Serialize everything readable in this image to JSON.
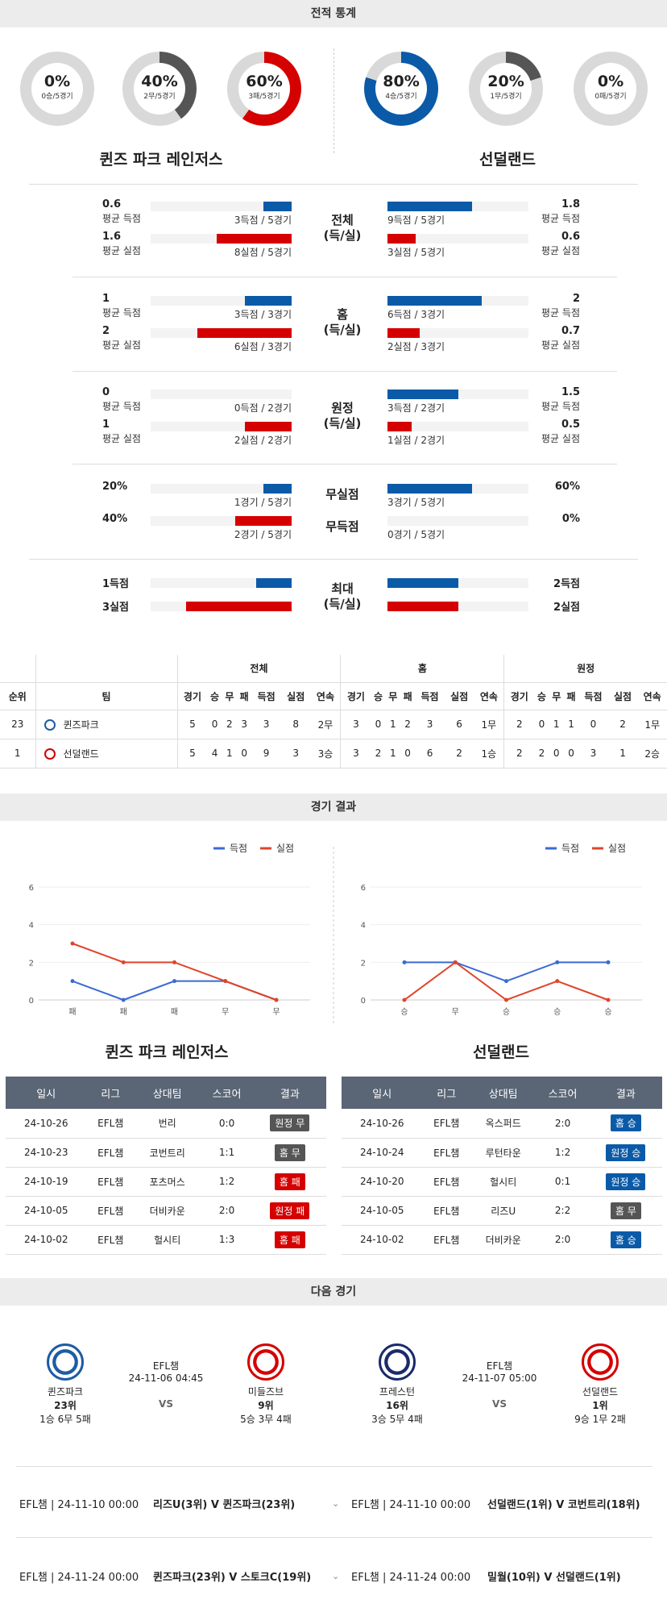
{
  "header": {
    "title": "전적 통계"
  },
  "donuts_left": [
    {
      "pct": "0%",
      "sub": "0승/5경기",
      "value": 0,
      "color": "#d50000"
    },
    {
      "pct": "40%",
      "sub": "2무/5경기",
      "value": 0.4,
      "color": "#555555"
    },
    {
      "pct": "60%",
      "sub": "3패/5경기",
      "value": 0.6,
      "color": "#d50000"
    }
  ],
  "donuts_right": [
    {
      "pct": "80%",
      "sub": "4승/5경기",
      "value": 0.8,
      "color": "#0b5aa8"
    },
    {
      "pct": "20%",
      "sub": "1무/5경기",
      "value": 0.2,
      "color": "#555555"
    },
    {
      "pct": "0%",
      "sub": "0패/5경기",
      "value": 0,
      "color": "#d50000"
    }
  ],
  "team_left": "퀸즈 파크 레인저스",
  "team_right": "선덜랜드",
  "stats": [
    {
      "center": [
        "전체",
        "(득/실)"
      ],
      "left": [
        {
          "num": "0.6",
          "lbl": "평균 득점",
          "cap": "3득점 / 5경기",
          "frac": 0.2,
          "color": "blue"
        },
        {
          "num": "1.6",
          "lbl": "평균 실점",
          "cap": "8실점 / 5경기",
          "frac": 0.53,
          "color": "red"
        }
      ],
      "right": [
        {
          "num": "1.8",
          "lbl": "평균 득점",
          "cap": "9득점 / 5경기",
          "frac": 0.6,
          "color": "blue"
        },
        {
          "num": "0.6",
          "lbl": "평균 실점",
          "cap": "3실점 / 5경기",
          "frac": 0.2,
          "color": "red"
        }
      ]
    },
    {
      "center": [
        "홈",
        "(득/실)"
      ],
      "left": [
        {
          "num": "1",
          "lbl": "평균 득점",
          "cap": "3득점 / 3경기",
          "frac": 0.33,
          "color": "blue"
        },
        {
          "num": "2",
          "lbl": "평균 실점",
          "cap": "6실점 / 3경기",
          "frac": 0.67,
          "color": "red"
        }
      ],
      "right": [
        {
          "num": "2",
          "lbl": "평균 득점",
          "cap": "6득점 / 3경기",
          "frac": 0.67,
          "color": "blue"
        },
        {
          "num": "0.7",
          "lbl": "평균 실점",
          "cap": "2실점 / 3경기",
          "frac": 0.23,
          "color": "red"
        }
      ]
    },
    {
      "center": [
        "원정",
        "(득/실)"
      ],
      "left": [
        {
          "num": "0",
          "lbl": "평균 득점",
          "cap": "0득점 / 2경기",
          "frac": 0,
          "color": "blue"
        },
        {
          "num": "1",
          "lbl": "평균 실점",
          "cap": "2실점 / 2경기",
          "frac": 0.33,
          "color": "red"
        }
      ],
      "right": [
        {
          "num": "1.5",
          "lbl": "평균 득점",
          "cap": "3득점 / 2경기",
          "frac": 0.5,
          "color": "blue"
        },
        {
          "num": "0.5",
          "lbl": "평균 실점",
          "cap": "1실점 / 2경기",
          "frac": 0.17,
          "color": "red"
        }
      ]
    }
  ],
  "clean": {
    "center1": "무실점",
    "center2": "무득점",
    "left": [
      {
        "num": "20%",
        "cap": "1경기 / 5경기",
        "frac": 0.2,
        "color": "blue"
      },
      {
        "num": "40%",
        "cap": "2경기 / 5경기",
        "frac": 0.4,
        "color": "red"
      }
    ],
    "right": [
      {
        "num": "60%",
        "cap": "3경기 / 5경기",
        "frac": 0.6,
        "color": "blue"
      },
      {
        "num": "0%",
        "cap": "0경기 / 5경기",
        "frac": 0,
        "color": "red"
      }
    ]
  },
  "max": {
    "center": [
      "최대",
      "(득/실)"
    ],
    "left": [
      {
        "num": "1득점",
        "frac": 0.25,
        "color": "blue"
      },
      {
        "num": "3실점",
        "frac": 0.75,
        "color": "red"
      }
    ],
    "right": [
      {
        "num": "2득점",
        "frac": 0.5,
        "color": "blue"
      },
      {
        "num": "2실점",
        "frac": 0.5,
        "color": "red"
      }
    ]
  },
  "standings": {
    "groups": [
      "전체",
      "홈",
      "원정"
    ],
    "cols_left": [
      "순위",
      "팀"
    ],
    "cols": [
      "경기",
      "승",
      "무",
      "패",
      "득점",
      "실점",
      "연속"
    ],
    "rows": [
      {
        "rank": "23",
        "team": "퀸즈파크",
        "crest": "#1d5ba4",
        "all": [
          "5",
          "0",
          "2",
          "3",
          "3",
          "8",
          "2무"
        ],
        "home": [
          "3",
          "0",
          "1",
          "2",
          "3",
          "6",
          "1무"
        ],
        "away": [
          "2",
          "0",
          "1",
          "1",
          "0",
          "2",
          "1무"
        ]
      },
      {
        "rank": "1",
        "team": "선덜랜드",
        "crest": "#d50000",
        "all": [
          "5",
          "4",
          "1",
          "0",
          "9",
          "3",
          "3승"
        ],
        "home": [
          "3",
          "2",
          "1",
          "0",
          "6",
          "2",
          "1승"
        ],
        "away": [
          "2",
          "2",
          "0",
          "0",
          "3",
          "1",
          "2승"
        ]
      }
    ]
  },
  "results_header": "경기 결과",
  "chart_data": [
    {
      "type": "line",
      "categories": [
        "패",
        "패",
        "패",
        "무",
        "무"
      ],
      "ylim": [
        0,
        6
      ],
      "yticks": [
        0,
        2,
        4,
        6
      ],
      "series": [
        {
          "name": "득점",
          "color": "#3a6ad4",
          "values": [
            1,
            0,
            1,
            1,
            0
          ]
        },
        {
          "name": "실점",
          "color": "#e0442a",
          "values": [
            3,
            2,
            2,
            1,
            0
          ]
        }
      ],
      "legend": "top-right"
    },
    {
      "type": "line",
      "categories": [
        "승",
        "무",
        "승",
        "승",
        "승"
      ],
      "ylim": [
        0,
        6
      ],
      "yticks": [
        0,
        2,
        4,
        6
      ],
      "series": [
        {
          "name": "득점",
          "color": "#3a6ad4",
          "values": [
            2,
            2,
            1,
            2,
            2
          ]
        },
        {
          "name": "실점",
          "color": "#e0442a",
          "values": [
            0,
            2,
            0,
            1,
            0
          ]
        }
      ],
      "legend": "top-right"
    }
  ],
  "results": {
    "cols": [
      "일시",
      "리그",
      "상대팀",
      "스코어",
      "결과"
    ],
    "left_title": "퀸즈 파크 레인저스",
    "right_title": "선덜랜드",
    "left": [
      [
        "24-10-26",
        "EFL챔",
        "번리",
        "0:0",
        "원정 무",
        "gray"
      ],
      [
        "24-10-23",
        "EFL챔",
        "코번트리",
        "1:1",
        "홈 무",
        "gray"
      ],
      [
        "24-10-19",
        "EFL챔",
        "포츠머스",
        "1:2",
        "홈 패",
        "red"
      ],
      [
        "24-10-05",
        "EFL챔",
        "더비카운",
        "2:0",
        "원정 패",
        "red"
      ],
      [
        "24-10-02",
        "EFL챔",
        "헐시티",
        "1:3",
        "홈 패",
        "red"
      ]
    ],
    "right": [
      [
        "24-10-26",
        "EFL챔",
        "옥스퍼드",
        "2:0",
        "홈 승",
        "blue"
      ],
      [
        "24-10-24",
        "EFL챔",
        "루턴타운",
        "1:2",
        "원정 승",
        "blue"
      ],
      [
        "24-10-20",
        "EFL챔",
        "헐시티",
        "0:1",
        "원정 승",
        "blue"
      ],
      [
        "24-10-05",
        "EFL챔",
        "리즈U",
        "2:2",
        "홈 무",
        "gray"
      ],
      [
        "24-10-02",
        "EFL챔",
        "더비카운",
        "2:0",
        "홈 승",
        "blue"
      ]
    ]
  },
  "next": {
    "header": "다음 경기",
    "left": {
      "league": "EFL챔",
      "datetime": "24-11-06 04:45",
      "vs": "VS",
      "home": {
        "name": "퀸즈파크",
        "rank": "23위",
        "record": "1승 6무 5패"
      },
      "away": {
        "name": "미들즈브",
        "rank": "9위",
        "record": "5승 3무 4패"
      }
    },
    "right": {
      "league": "EFL챔",
      "datetime": "24-11-07 05:00",
      "vs": "VS",
      "home": {
        "name": "프레스턴",
        "rank": "16위",
        "record": "3승 5무 4패"
      },
      "away": {
        "name": "선덜랜드",
        "rank": "1위",
        "record": "9승 1무 2패"
      }
    }
  },
  "schedule": [
    {
      "left_info": "EFL챔 | 24-11-10 00:00",
      "left_match": "리즈U(3위) V 퀸즈파크(23위)",
      "right_info": "EFL챔 | 24-11-10 00:00",
      "right_match": "선덜랜드(1위) V 코번트리(18위)"
    },
    {
      "left_info": "EFL챔 | 24-11-24 00:00",
      "left_match": "퀸즈파크(23위) V 스토크C(19위)",
      "right_info": "EFL챔 | 24-11-24 00:00",
      "right_match": "밀월(10위) V 선덜랜드(1위)"
    }
  ]
}
